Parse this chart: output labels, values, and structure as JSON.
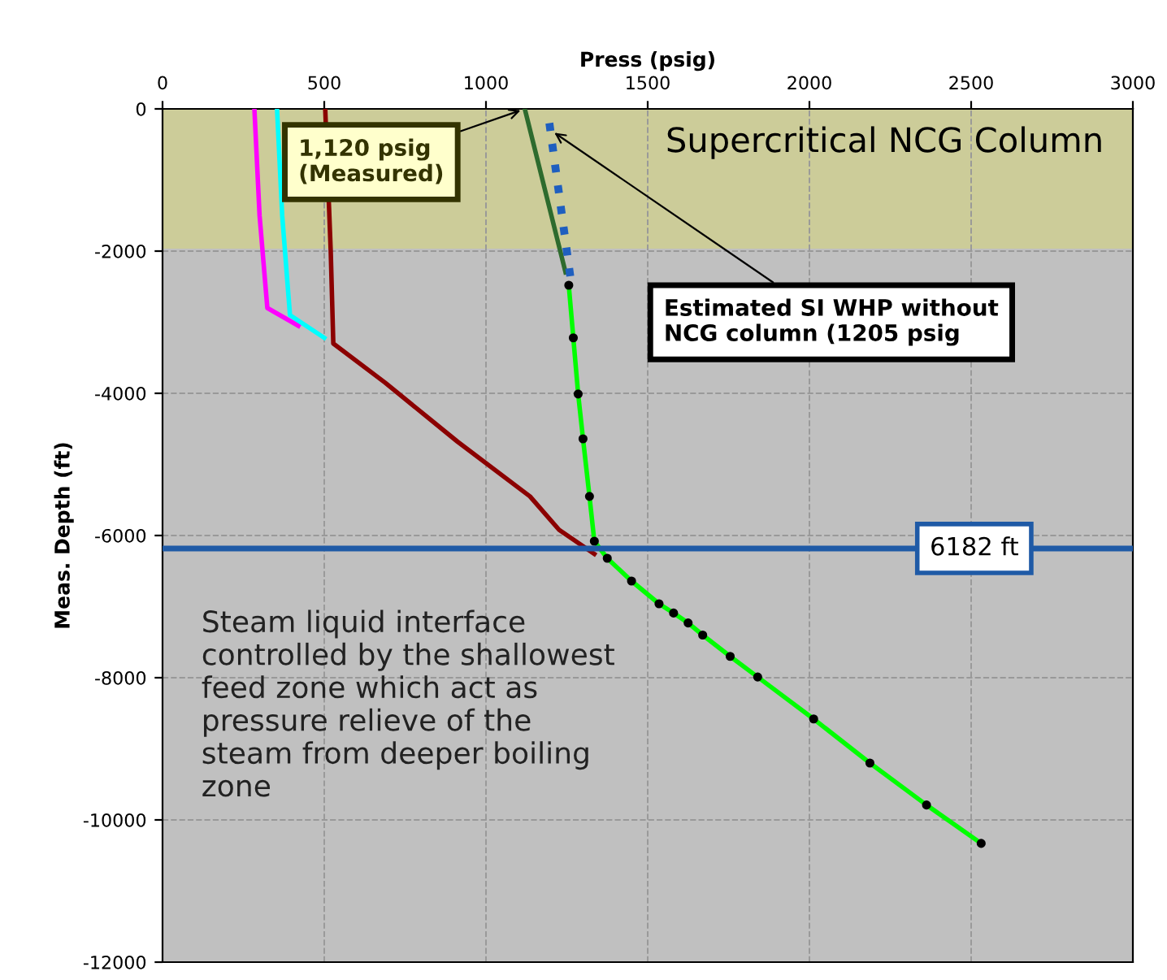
{
  "chart_data": {
    "type": "line",
    "xlabel": "Press (psig)",
    "ylabel": "Meas. Depth (ft)",
    "xlim": [
      0,
      3000
    ],
    "xticks": [
      0,
      500,
      1000,
      1500,
      2000,
      2500,
      3000
    ],
    "ylim": [
      -12000,
      0
    ],
    "yticks": [
      0,
      -2000,
      -4000,
      -6000,
      -8000,
      -10000,
      -12000
    ],
    "grid": true,
    "line_style": "solid",
    "series": [
      {
        "color": "#ff00ff",
        "marker": "none",
        "x": [
          284,
          300,
          324,
          420
        ],
        "values": [
          0,
          -1500,
          -2800,
          -3050
        ]
      },
      {
        "color": "#00ffff",
        "marker": "none",
        "x": [
          354,
          370,
          394,
          500
        ],
        "values": [
          0,
          -1500,
          -2900,
          -3220
        ]
      },
      {
        "color": "#8b0000",
        "marker": "none",
        "x": [
          503,
          520,
          528,
          688,
          912,
          1136,
          1226,
          1335
        ],
        "values": [
          0,
          -2000,
          -3300,
          -3850,
          -4680,
          -5450,
          -5920,
          -6260
        ]
      },
      {
        "color": "#2e6b2e",
        "x": [
          1120,
          1246
        ],
        "values": [
          0,
          -2300
        ]
      },
      {
        "color": "#1f5fbf",
        "marker": "none",
        "line_style": "dotted",
        "x": [
          1196,
          1265
        ],
        "values": [
          -200,
          -2500
        ]
      },
      {
        "color": "#00ff00",
        "marker": "circle",
        "x": [
          1256,
          1270,
          1285,
          1300,
          1320,
          1335,
          1375,
          1450,
          1535,
          1580,
          1625,
          1670,
          1755,
          1840,
          2013,
          2187,
          2362,
          2531
        ],
        "values": [
          -2480,
          -3220,
          -4010,
          -4640,
          -5450,
          -6080,
          -6320,
          -6640,
          -6960,
          -7090,
          -7230,
          -7400,
          -7700,
          -7990,
          -8580,
          -9200,
          -9790,
          -10330
        ]
      }
    ],
    "bands": [
      {
        "axis": "y",
        "from": -1950,
        "to": 0,
        "label": "Supercritical NCG Column",
        "color": "#cccc99"
      }
    ],
    "ref_lines": [
      {
        "axis": "y",
        "value": -6182,
        "label": "6182 ft",
        "color": "#1f5aa6"
      }
    ],
    "annotations": [
      {
        "text": "1,120 psig\n(Measured)",
        "x": 1120,
        "y": 0
      },
      {
        "text": "Estimated SI WHP without\nNCG column (1205 psig",
        "x": 1200,
        "y": -300
      },
      "Steam liquid interface\ncontrolled by the shallowest\nfeed zone which act as\npressure relieve of the\nsteam from deeper boiling\nzone"
    ]
  }
}
